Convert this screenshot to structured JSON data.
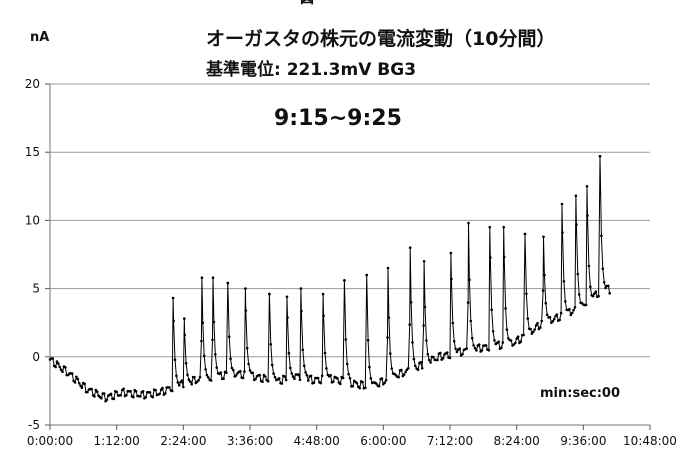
{
  "figure_label": "図",
  "chart_data": {
    "type": "line",
    "title": "オーガスタの株元の電流変動（10分間）",
    "subtitle": "基準電位: 221.3mV   BG3",
    "annotation": "9:15~9:25",
    "ylabel": "nA",
    "xlabel": "min:sec:00",
    "ylim": [
      -5,
      20
    ],
    "yticks": [
      -5,
      0,
      5,
      10,
      15,
      20
    ],
    "ytick_labels": [
      "-5",
      "0",
      "5",
      "10",
      "15",
      "20"
    ],
    "xlim_seconds": [
      0,
      648
    ],
    "xticks_seconds": [
      0,
      72,
      144,
      216,
      288,
      360,
      432,
      504,
      576,
      648
    ],
    "xtick_labels": [
      "0:00:00",
      "1:12:00",
      "2:24:00",
      "3:36:00",
      "4:48:00",
      "6:00:00",
      "7:12:00",
      "8:24:00",
      "9:36:00",
      "10:48:00"
    ],
    "grid": "horizontal",
    "marker": "dot",
    "series_color": "#000000",
    "baseline": [
      [
        0,
        -0.2
      ],
      [
        20,
        -1.2
      ],
      [
        40,
        -2.4
      ],
      [
        60,
        -3.0
      ],
      [
        80,
        -2.6
      ],
      [
        100,
        -2.8
      ],
      [
        120,
        -2.6
      ],
      [
        130,
        -2.3
      ],
      [
        150,
        -1.8
      ],
      [
        175,
        -1.5
      ],
      [
        200,
        -1.2
      ],
      [
        225,
        -1.5
      ],
      [
        245,
        -1.8
      ],
      [
        265,
        -1.4
      ],
      [
        285,
        -1.7
      ],
      [
        305,
        -1.6
      ],
      [
        325,
        -1.9
      ],
      [
        345,
        -2.2
      ],
      [
        360,
        -1.8
      ],
      [
        375,
        -1.3
      ],
      [
        390,
        -1.0
      ],
      [
        405,
        -0.5
      ],
      [
        420,
        0.0
      ],
      [
        440,
        0.3
      ],
      [
        460,
        0.6
      ],
      [
        480,
        0.8
      ],
      [
        500,
        1.0
      ],
      [
        515,
        1.6
      ],
      [
        530,
        2.4
      ],
      [
        545,
        2.8
      ],
      [
        560,
        3.2
      ],
      [
        575,
        3.8
      ],
      [
        590,
        4.6
      ],
      [
        600,
        5.0
      ],
      [
        605,
        4.9
      ]
    ],
    "spikes": [
      {
        "t": 133,
        "peak": 4.3
      },
      {
        "t": 145,
        "peak": 2.8
      },
      {
        "t": 164,
        "peak": 5.8
      },
      {
        "t": 176,
        "peak": 5.8
      },
      {
        "t": 192,
        "peak": 5.4
      },
      {
        "t": 211,
        "peak": 5.0
      },
      {
        "t": 237,
        "peak": 4.6
      },
      {
        "t": 256,
        "peak": 4.4
      },
      {
        "t": 271,
        "peak": 5.0
      },
      {
        "t": 295,
        "peak": 4.6
      },
      {
        "t": 318,
        "peak": 5.6
      },
      {
        "t": 342,
        "peak": 6.0
      },
      {
        "t": 365,
        "peak": 6.5
      },
      {
        "t": 389,
        "peak": 8.0
      },
      {
        "t": 404,
        "peak": 7.0
      },
      {
        "t": 433,
        "peak": 7.6
      },
      {
        "t": 452,
        "peak": 9.8
      },
      {
        "t": 475,
        "peak": 9.5
      },
      {
        "t": 490,
        "peak": 9.5
      },
      {
        "t": 513,
        "peak": 9.0
      },
      {
        "t": 533,
        "peak": 8.8
      },
      {
        "t": 553,
        "peak": 11.2
      },
      {
        "t": 568,
        "peak": 11.8
      },
      {
        "t": 580,
        "peak": 12.5
      },
      {
        "t": 594,
        "peak": 14.7
      }
    ]
  }
}
